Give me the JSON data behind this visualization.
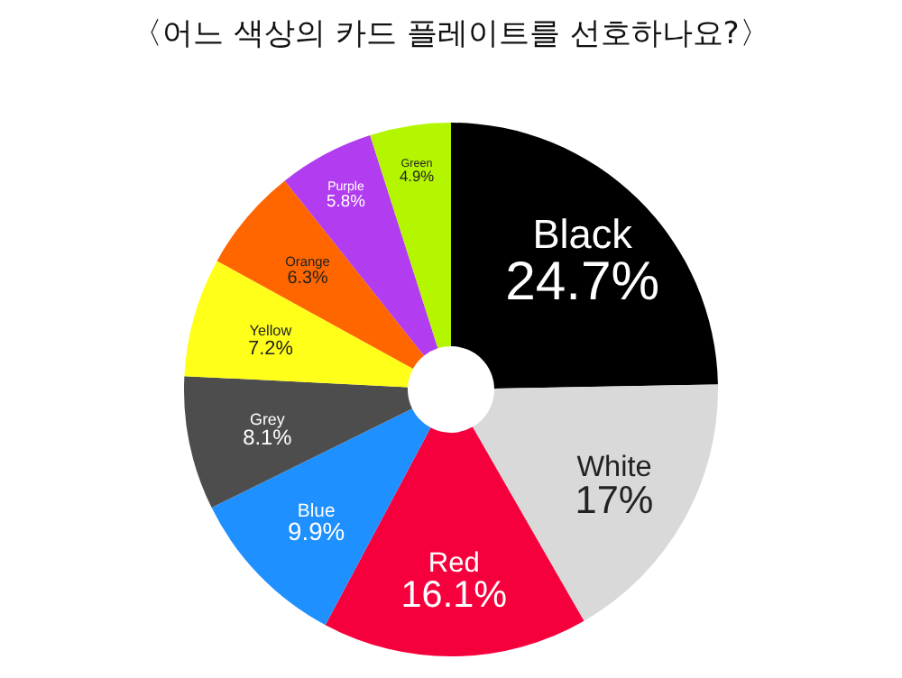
{
  "chart_data": {
    "type": "donut",
    "title": "〈어느 색상의 카드 플레이트를 선호하나요?〉",
    "categories": [
      "Black",
      "White",
      "Red",
      "Blue",
      "Grey",
      "Yellow",
      "Orange",
      "Purple",
      "Green"
    ],
    "values": [
      24.7,
      17,
      16.1,
      9.9,
      8.1,
      7.2,
      6.3,
      5.8,
      4.9
    ],
    "colors": [
      "#000000",
      "#d9d9d9",
      "#f5003c",
      "#1e90ff",
      "#4d4d4d",
      "#ffff1a",
      "#ff6600",
      "#b23cf0",
      "#b4f500"
    ],
    "value_labels": [
      "24.7%",
      "17%",
      "16.1%",
      "9.9%",
      "8.1%",
      "7.2%",
      "6.3%",
      "5.8%",
      "4.9%"
    ]
  }
}
